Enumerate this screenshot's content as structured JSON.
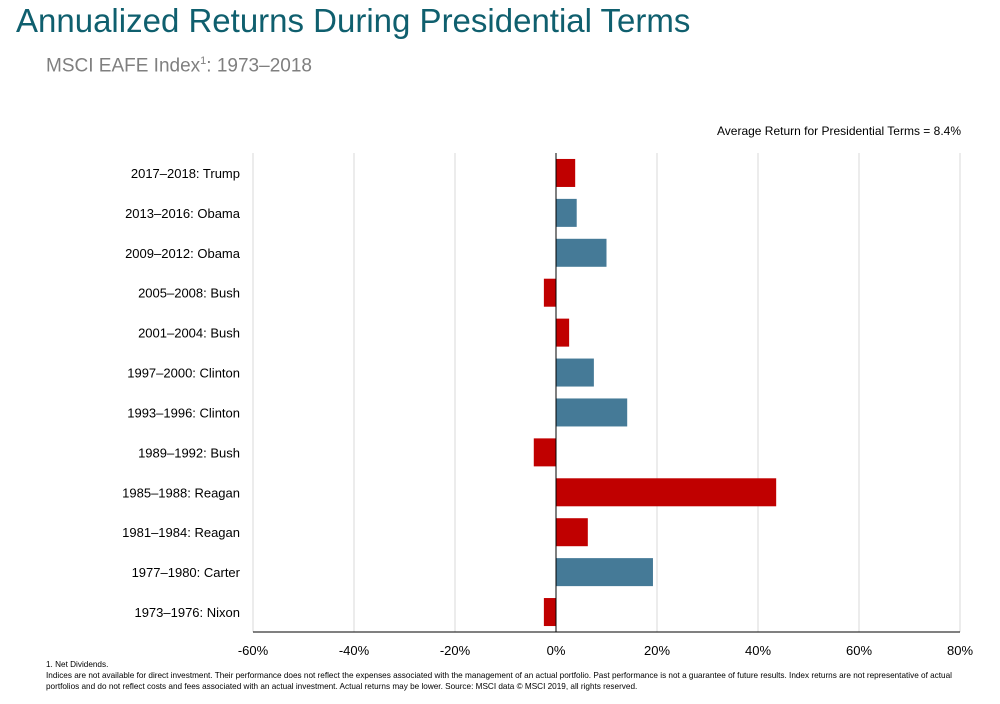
{
  "header": {
    "title": "Annualized Returns During Presidential Terms",
    "subtitle_main": "MSCI EAFE Index",
    "subtitle_sup": "1",
    "subtitle_tail": ": 1973–2018",
    "average_label": "Average Return for Presidential Terms = 8.4%"
  },
  "colors": {
    "republican": "#c00000",
    "democrat": "#457a97",
    "axis": "#000000",
    "grid": "#d9d9d9"
  },
  "chart_data": {
    "type": "bar",
    "orientation": "horizontal",
    "categories": [
      "2017–2018: Trump",
      "2013–2016: Obama",
      "2009–2012: Obama",
      "2005–2008: Bush",
      "2001–2004: Bush",
      "1997–2000: Clinton",
      "1993–1996: Clinton",
      "1989–1992: Bush",
      "1985–1988: Reagan",
      "1981–1984: Reagan",
      "1977–1980: Carter",
      "1973–1976: Nixon"
    ],
    "values": [
      3.8,
      4.1,
      10.0,
      -2.4,
      2.6,
      7.5,
      14.1,
      -4.4,
      43.6,
      6.3,
      19.2,
      -2.4
    ],
    "party_colors": [
      "red",
      "blue",
      "blue",
      "red",
      "red",
      "blue",
      "blue",
      "red",
      "red",
      "red",
      "blue",
      "red"
    ],
    "xlim": [
      -60,
      80
    ],
    "xticks": [
      -60,
      -40,
      -20,
      0,
      20,
      40,
      60,
      80
    ],
    "xtick_labels": [
      "-60%",
      "-40%",
      "-20%",
      "0%",
      "20%",
      "40%",
      "60%",
      "80%"
    ],
    "grid": true,
    "legend": "none"
  },
  "footnotes": {
    "note1": "1. Net Dividends.",
    "disclaimer": "Indices are not available for direct investment. Their performance does not reflect the expenses associated with the management of an actual portfolio. Past performance is not a guarantee of future results. Index returns are not representative of actual portfolios and do not reflect costs and fees associated with an actual investment. Actual returns may be lower. Source: MSCI data © MSCI 2019, all rights reserved."
  }
}
